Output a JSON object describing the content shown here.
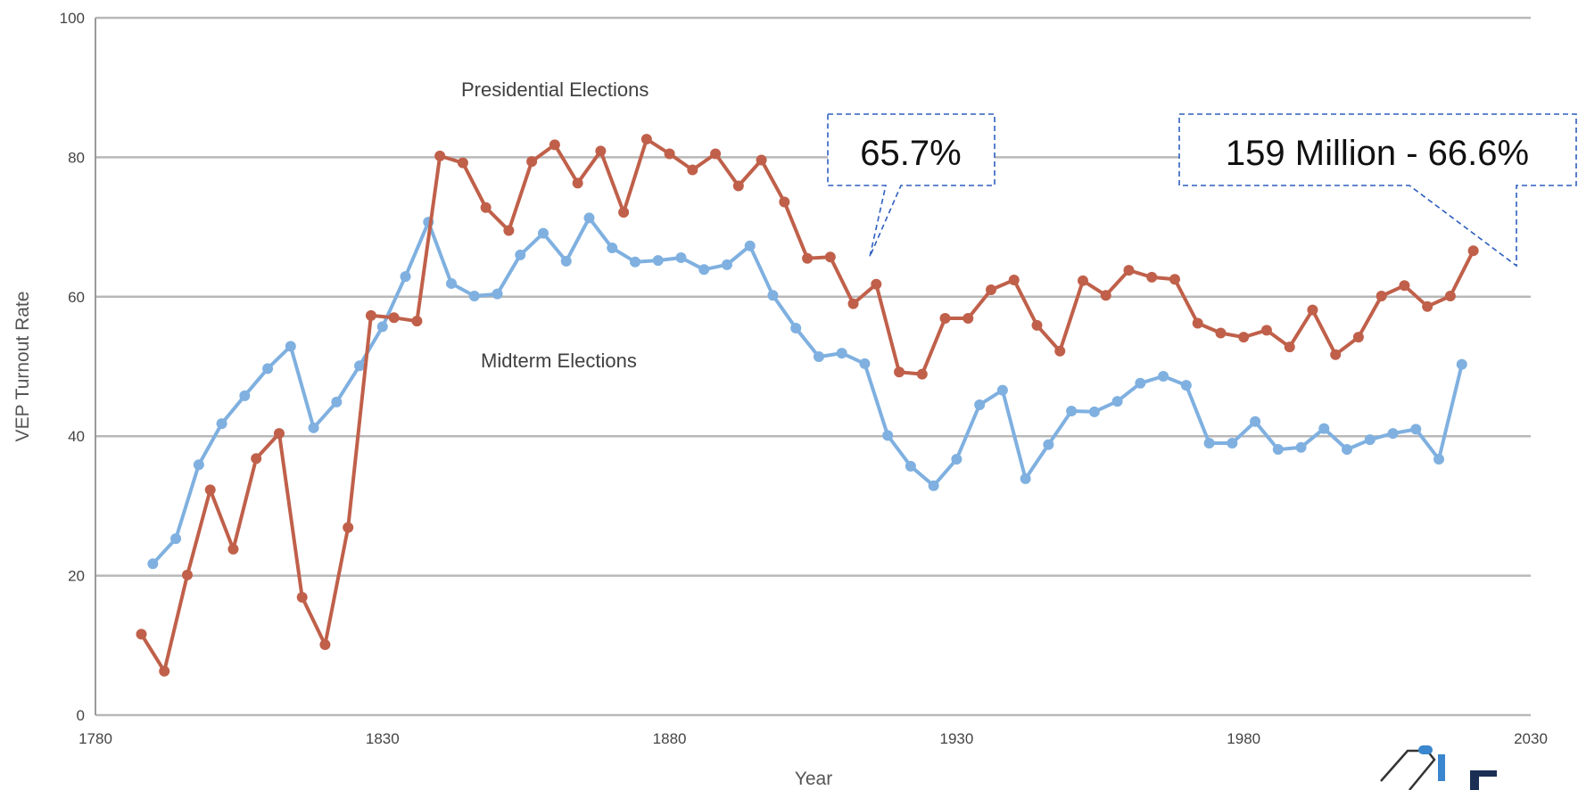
{
  "chart_data": {
    "type": "line",
    "xlabel": "Year",
    "ylabel": "VEP Turnout Rate",
    "xlim": [
      1780,
      2030
    ],
    "ylim": [
      0,
      100
    ],
    "xticks": [
      1780,
      1830,
      1880,
      1930,
      1980,
      2030
    ],
    "yticks": [
      0,
      20,
      40,
      60,
      80,
      100
    ],
    "grid": "horizontal",
    "colors": {
      "presidential": "#c0604a",
      "midterm": "#7fb0e0",
      "grid": "#b8b8b8",
      "callout_border": "#2f5fbf"
    },
    "series": [
      {
        "name": "Presidential Elections",
        "x": [
          1788,
          1792,
          1796,
          1800,
          1804,
          1808,
          1812,
          1816,
          1820,
          1824,
          1828,
          1832,
          1836,
          1840,
          1844,
          1848,
          1852,
          1856,
          1860,
          1864,
          1868,
          1872,
          1876,
          1880,
          1884,
          1888,
          1892,
          1896,
          1900,
          1904,
          1908,
          1912,
          1916,
          1920,
          1924,
          1928,
          1932,
          1936,
          1940,
          1944,
          1948,
          1952,
          1956,
          1960,
          1964,
          1968,
          1972,
          1976,
          1980,
          1984,
          1988,
          1992,
          1996,
          2000,
          2004,
          2008,
          2012,
          2016,
          2020
        ],
        "values": [
          11.6,
          6.3,
          20.1,
          32.3,
          23.8,
          36.8,
          40.4,
          16.9,
          10.1,
          26.9,
          57.3,
          57,
          56.5,
          80.2,
          79.2,
          72.8,
          69.5,
          79.4,
          81.8,
          76.3,
          80.9,
          72.1,
          82.6,
          80.5,
          78.2,
          80.5,
          75.9,
          79.6,
          73.6,
          65.5,
          65.7,
          59,
          61.8,
          49.2,
          48.9,
          56.9,
          56.9,
          61,
          62.4,
          55.9,
          52.2,
          62.3,
          60.2,
          63.8,
          62.8,
          62.5,
          56.2,
          54.8,
          54.2,
          55.2,
          52.8,
          58.1,
          51.7,
          54.2,
          60.1,
          61.6,
          58.6,
          60.1,
          66.6
        ]
      },
      {
        "name": "Midterm Elections",
        "x": [
          1790,
          1794,
          1798,
          1802,
          1806,
          1810,
          1814,
          1818,
          1822,
          1826,
          1830,
          1834,
          1838,
          1842,
          1846,
          1850,
          1854,
          1858,
          1862,
          1866,
          1870,
          1874,
          1878,
          1882,
          1886,
          1890,
          1894,
          1898,
          1902,
          1906,
          1910,
          1914,
          1918,
          1922,
          1926,
          1930,
          1934,
          1938,
          1942,
          1946,
          1950,
          1954,
          1958,
          1962,
          1966,
          1970,
          1974,
          1978,
          1982,
          1986,
          1990,
          1994,
          1998,
          2002,
          2006,
          2010,
          2014,
          2018
        ],
        "values": [
          21.7,
          25.3,
          35.9,
          41.8,
          45.8,
          49.7,
          52.9,
          41.2,
          44.9,
          50.1,
          55.7,
          62.9,
          70.7,
          61.9,
          60.1,
          60.4,
          66,
          69.1,
          65.1,
          71.3,
          67,
          65,
          65.2,
          65.6,
          63.9,
          64.6,
          67.3,
          60.2,
          55.5,
          51.4,
          51.9,
          50.4,
          40.1,
          35.7,
          32.9,
          36.7,
          44.5,
          46.6,
          33.9,
          38.8,
          43.6,
          43.5,
          45,
          47.6,
          48.6,
          47.3,
          39,
          39,
          42.1,
          38.1,
          38.4,
          41.1,
          38.1,
          39.5,
          40.4,
          41,
          36.7,
          50.3
        ]
      }
    ],
    "annotations": {
      "presidential_label": "Presidential Elections",
      "midterm_label": "Midterm Elections",
      "callout_1": "65.7%",
      "callout_2": "159 Million - 66.6%"
    }
  }
}
